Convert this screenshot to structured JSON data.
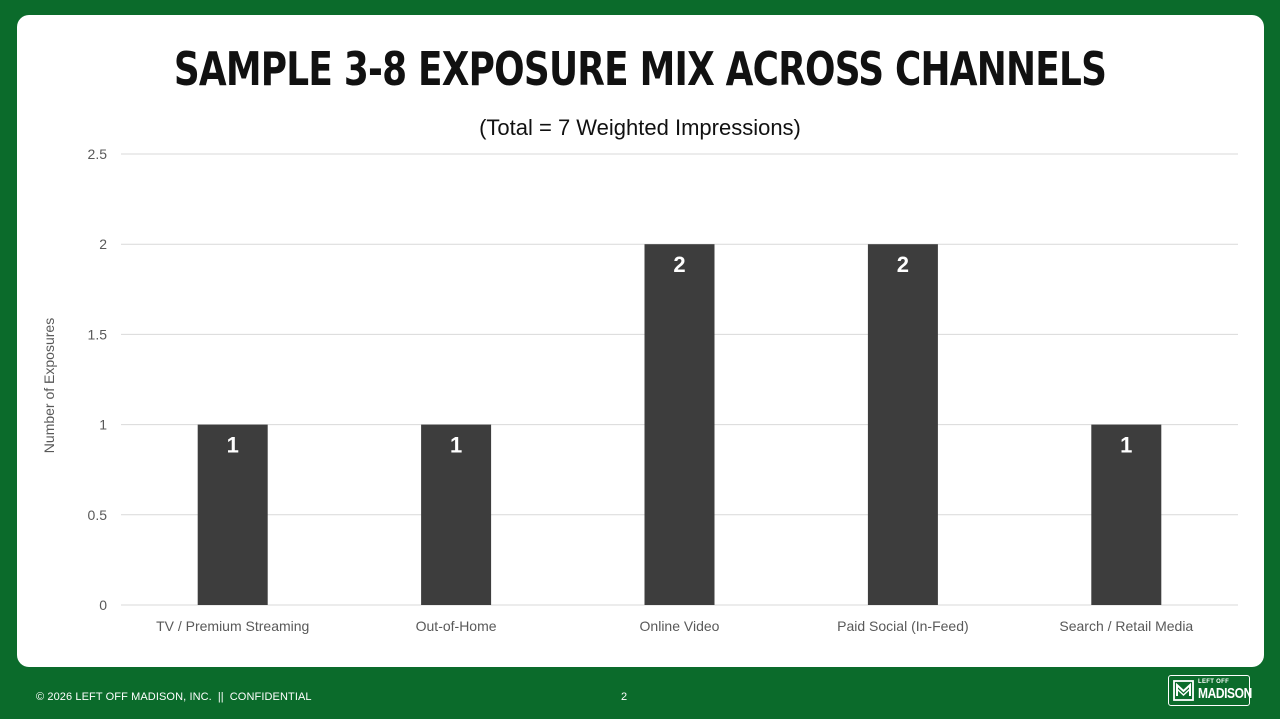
{
  "slide": {
    "title": "SAMPLE 3-8 EXPOSURE MIX ACROSS CHANNELS",
    "footer": {
      "copyright": "© 2026 LEFT OFF MADISON, INC.",
      "separator": "||",
      "label": "CONFIDENTIAL",
      "page_number": "2"
    },
    "logo": {
      "top_text": "LEFT OFF",
      "main_text": "MADISON",
      "icon": "madison-logo-icon"
    }
  },
  "colors": {
    "background": "#0b6b2b",
    "card": "#ffffff",
    "bar": "#3d3d3d",
    "gridline": "#d9d9d9",
    "axis_text": "#595959",
    "data_label": "#ffffff"
  },
  "chart_data": {
    "type": "bar",
    "title": "",
    "subtitle": "(Total = 7 Weighted Impressions)",
    "xlabel": "",
    "ylabel": "Number of Exposures",
    "categories": [
      "TV / Premium Streaming",
      "Out-of-Home",
      "Online Video",
      "Paid Social (In-Feed)",
      "Search / Retail Media"
    ],
    "values": [
      1,
      1,
      2,
      2,
      1
    ],
    "data_labels": [
      "1",
      "1",
      "2",
      "2",
      "1"
    ],
    "ylim": [
      0,
      2.5
    ],
    "yticks": [
      0,
      0.5,
      1,
      1.5,
      2,
      2.5
    ],
    "ytick_labels": [
      "0",
      "0.5",
      "1",
      "1.5",
      "2",
      "2.5"
    ],
    "grid": true,
    "legend": "none"
  }
}
